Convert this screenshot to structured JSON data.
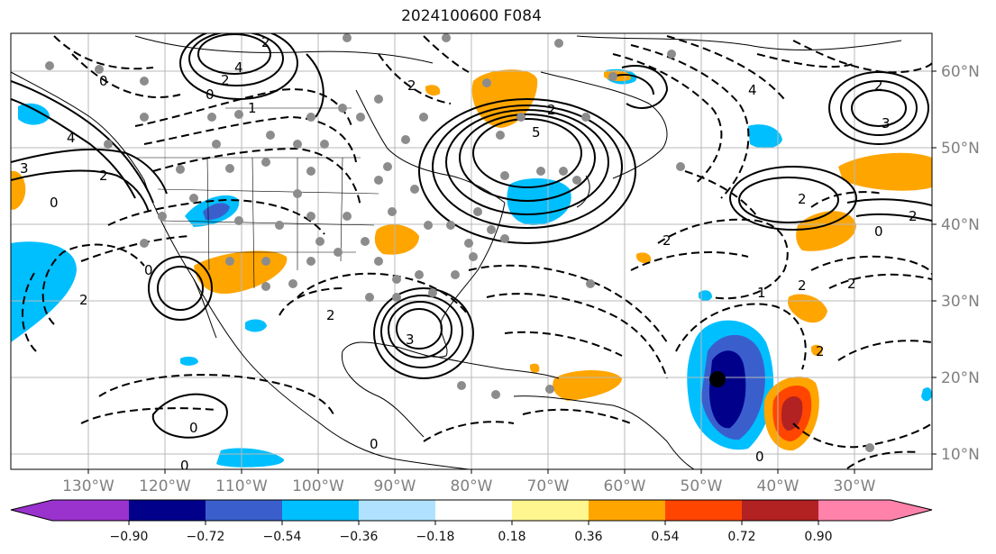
{
  "title": "2024100600 F084",
  "map": {
    "lon_labels": [
      "130°W",
      "120°W",
      "110°W",
      "100°W",
      "90°W",
      "80°W",
      "70°W",
      "60°W",
      "50°W",
      "40°W",
      "30°W"
    ],
    "lat_labels": [
      "60°N",
      "50°N",
      "40°N",
      "30°N",
      "20°N",
      "10°N"
    ],
    "contour_labels": [
      "0",
      "2",
      "4",
      "3",
      "2",
      "0",
      "1",
      "2",
      "4",
      "0",
      "2",
      "5",
      "2",
      "4",
      "2",
      "3",
      "2",
      "2",
      "2",
      "0",
      "2",
      "0",
      "3",
      "0",
      "0",
      "0",
      "2",
      "2",
      "1",
      "2",
      "0",
      "2"
    ],
    "station_marker": {
      "lon": "48°W",
      "lat": "20°N"
    }
  },
  "colorbar": {
    "ticks": [
      "−0.90",
      "−0.72",
      "−0.54",
      "−0.36",
      "−0.18",
      "0.18",
      "0.36",
      "0.54",
      "0.72",
      "0.90"
    ],
    "colors": {
      "under": "#9a32cd",
      "c1": "#00008b",
      "c2": "#3a5fcd",
      "c3": "#00bfff",
      "c4": "#b0e2ff",
      "c5": "#ffffff",
      "c6": "#fff68f",
      "c7": "#ffa500",
      "c8": "#ff4500",
      "c9": "#b22222",
      "over": "#ff82ab"
    }
  }
}
